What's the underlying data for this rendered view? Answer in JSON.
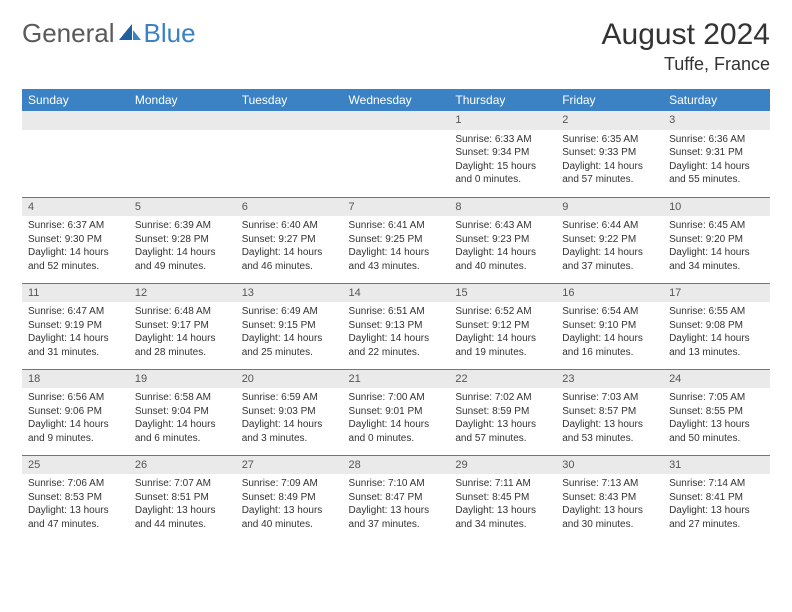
{
  "logo": {
    "part1": "General",
    "part2": "Blue"
  },
  "title": "August 2024",
  "location": "Tuffe, France",
  "day_headers": [
    "Sunday",
    "Monday",
    "Tuesday",
    "Wednesday",
    "Thursday",
    "Friday",
    "Saturday"
  ],
  "colors": {
    "header_bg": "#3b82c4",
    "header_text": "#ffffff",
    "daynum_bg": "#eaeaea",
    "border": "#3b82c4",
    "text": "#333333",
    "logo_gray": "#5a5a5a",
    "logo_blue": "#3b82c4"
  },
  "weeks": [
    [
      null,
      null,
      null,
      null,
      {
        "n": "1",
        "sunrise": "6:33 AM",
        "sunset": "9:34 PM",
        "daylight": "15 hours and 0 minutes."
      },
      {
        "n": "2",
        "sunrise": "6:35 AM",
        "sunset": "9:33 PM",
        "daylight": "14 hours and 57 minutes."
      },
      {
        "n": "3",
        "sunrise": "6:36 AM",
        "sunset": "9:31 PM",
        "daylight": "14 hours and 55 minutes."
      }
    ],
    [
      {
        "n": "4",
        "sunrise": "6:37 AM",
        "sunset": "9:30 PM",
        "daylight": "14 hours and 52 minutes."
      },
      {
        "n": "5",
        "sunrise": "6:39 AM",
        "sunset": "9:28 PM",
        "daylight": "14 hours and 49 minutes."
      },
      {
        "n": "6",
        "sunrise": "6:40 AM",
        "sunset": "9:27 PM",
        "daylight": "14 hours and 46 minutes."
      },
      {
        "n": "7",
        "sunrise": "6:41 AM",
        "sunset": "9:25 PM",
        "daylight": "14 hours and 43 minutes."
      },
      {
        "n": "8",
        "sunrise": "6:43 AM",
        "sunset": "9:23 PM",
        "daylight": "14 hours and 40 minutes."
      },
      {
        "n": "9",
        "sunrise": "6:44 AM",
        "sunset": "9:22 PM",
        "daylight": "14 hours and 37 minutes."
      },
      {
        "n": "10",
        "sunrise": "6:45 AM",
        "sunset": "9:20 PM",
        "daylight": "14 hours and 34 minutes."
      }
    ],
    [
      {
        "n": "11",
        "sunrise": "6:47 AM",
        "sunset": "9:19 PM",
        "daylight": "14 hours and 31 minutes."
      },
      {
        "n": "12",
        "sunrise": "6:48 AM",
        "sunset": "9:17 PM",
        "daylight": "14 hours and 28 minutes."
      },
      {
        "n": "13",
        "sunrise": "6:49 AM",
        "sunset": "9:15 PM",
        "daylight": "14 hours and 25 minutes."
      },
      {
        "n": "14",
        "sunrise": "6:51 AM",
        "sunset": "9:13 PM",
        "daylight": "14 hours and 22 minutes."
      },
      {
        "n": "15",
        "sunrise": "6:52 AM",
        "sunset": "9:12 PM",
        "daylight": "14 hours and 19 minutes."
      },
      {
        "n": "16",
        "sunrise": "6:54 AM",
        "sunset": "9:10 PM",
        "daylight": "14 hours and 16 minutes."
      },
      {
        "n": "17",
        "sunrise": "6:55 AM",
        "sunset": "9:08 PM",
        "daylight": "14 hours and 13 minutes."
      }
    ],
    [
      {
        "n": "18",
        "sunrise": "6:56 AM",
        "sunset": "9:06 PM",
        "daylight": "14 hours and 9 minutes."
      },
      {
        "n": "19",
        "sunrise": "6:58 AM",
        "sunset": "9:04 PM",
        "daylight": "14 hours and 6 minutes."
      },
      {
        "n": "20",
        "sunrise": "6:59 AM",
        "sunset": "9:03 PM",
        "daylight": "14 hours and 3 minutes."
      },
      {
        "n": "21",
        "sunrise": "7:00 AM",
        "sunset": "9:01 PM",
        "daylight": "14 hours and 0 minutes."
      },
      {
        "n": "22",
        "sunrise": "7:02 AM",
        "sunset": "8:59 PM",
        "daylight": "13 hours and 57 minutes."
      },
      {
        "n": "23",
        "sunrise": "7:03 AM",
        "sunset": "8:57 PM",
        "daylight": "13 hours and 53 minutes."
      },
      {
        "n": "24",
        "sunrise": "7:05 AM",
        "sunset": "8:55 PM",
        "daylight": "13 hours and 50 minutes."
      }
    ],
    [
      {
        "n": "25",
        "sunrise": "7:06 AM",
        "sunset": "8:53 PM",
        "daylight": "13 hours and 47 minutes."
      },
      {
        "n": "26",
        "sunrise": "7:07 AM",
        "sunset": "8:51 PM",
        "daylight": "13 hours and 44 minutes."
      },
      {
        "n": "27",
        "sunrise": "7:09 AM",
        "sunset": "8:49 PM",
        "daylight": "13 hours and 40 minutes."
      },
      {
        "n": "28",
        "sunrise": "7:10 AM",
        "sunset": "8:47 PM",
        "daylight": "13 hours and 37 minutes."
      },
      {
        "n": "29",
        "sunrise": "7:11 AM",
        "sunset": "8:45 PM",
        "daylight": "13 hours and 34 minutes."
      },
      {
        "n": "30",
        "sunrise": "7:13 AM",
        "sunset": "8:43 PM",
        "daylight": "13 hours and 30 minutes."
      },
      {
        "n": "31",
        "sunrise": "7:14 AM",
        "sunset": "8:41 PM",
        "daylight": "13 hours and 27 minutes."
      }
    ]
  ]
}
